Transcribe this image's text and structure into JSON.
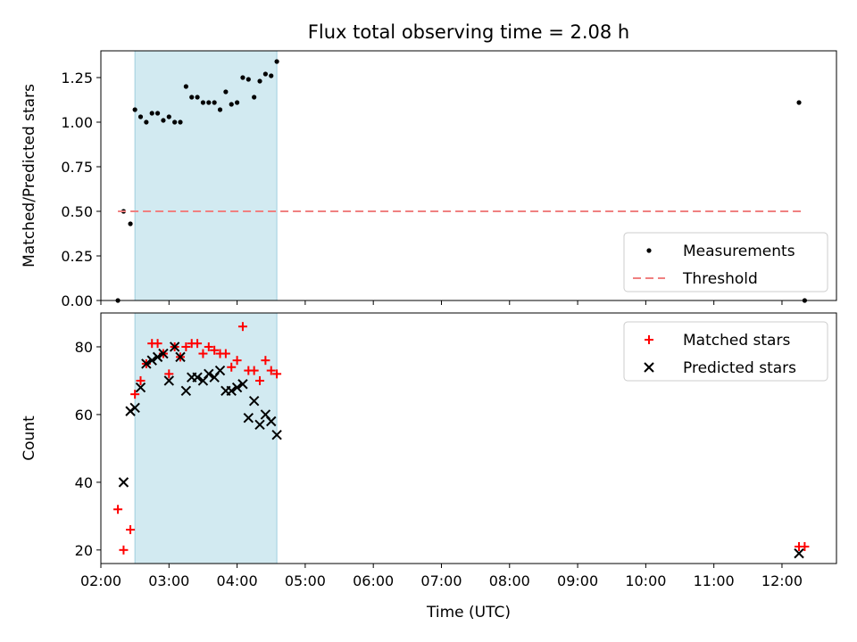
{
  "chart_data": [
    {
      "type": "scatter",
      "title": "Flux total observing time = 2.08 h",
      "ylabel": "Matched/Predicted stars",
      "xlabel": "",
      "xlim": [
        "02:00",
        "12:48"
      ],
      "ylim": [
        0,
        1.4
      ],
      "yticks": [
        "0.00",
        "0.25",
        "0.50",
        "0.75",
        "1.00",
        "1.25"
      ],
      "shaded_region": {
        "x_start": "02:30",
        "x_end": "04:35",
        "color": "#add8e6"
      },
      "legend": {
        "placement": "lower-right",
        "entries": [
          "Measurements",
          "Threshold"
        ]
      },
      "series": [
        {
          "name": "Measurements",
          "marker": "dot",
          "color": "#000000",
          "points": [
            [
              "02:15",
              0.0
            ],
            [
              "02:20",
              0.5
            ],
            [
              "02:26",
              0.43
            ],
            [
              "02:30",
              1.07
            ],
            [
              "02:35",
              1.03
            ],
            [
              "02:40",
              1.0
            ],
            [
              "02:45",
              1.05
            ],
            [
              "02:50",
              1.05
            ],
            [
              "02:55",
              1.01
            ],
            [
              "03:00",
              1.03
            ],
            [
              "03:05",
              1.0
            ],
            [
              "03:10",
              1.0
            ],
            [
              "03:15",
              1.2
            ],
            [
              "03:20",
              1.14
            ],
            [
              "03:25",
              1.14
            ],
            [
              "03:30",
              1.11
            ],
            [
              "03:35",
              1.11
            ],
            [
              "03:40",
              1.11
            ],
            [
              "03:45",
              1.07
            ],
            [
              "03:50",
              1.17
            ],
            [
              "03:55",
              1.1
            ],
            [
              "04:00",
              1.11
            ],
            [
              "04:05",
              1.25
            ],
            [
              "04:10",
              1.24
            ],
            [
              "04:15",
              1.14
            ],
            [
              "04:20",
              1.23
            ],
            [
              "04:25",
              1.27
            ],
            [
              "04:30",
              1.26
            ],
            [
              "04:35",
              1.34
            ],
            [
              "12:15",
              1.11
            ],
            [
              "12:20",
              0.0
            ]
          ]
        },
        {
          "name": "Threshold",
          "style": "dashed",
          "color": "#f08080",
          "points": [
            [
              "02:15",
              0.5
            ],
            [
              "12:20",
              0.5
            ]
          ]
        }
      ]
    },
    {
      "type": "scatter",
      "title": "",
      "ylabel": "Count",
      "xlabel": "Time (UTC)",
      "xlim": [
        "02:00",
        "12:48"
      ],
      "ylim": [
        16,
        90
      ],
      "yticks": [
        "20",
        "40",
        "60",
        "80"
      ],
      "xticks": [
        "02:00",
        "03:00",
        "04:00",
        "05:00",
        "06:00",
        "07:00",
        "08:00",
        "09:00",
        "10:00",
        "11:00",
        "12:00"
      ],
      "shaded_region": {
        "x_start": "02:30",
        "x_end": "04:35",
        "color": "#add8e6"
      },
      "legend": {
        "placement": "upper-right",
        "entries": [
          "Matched stars",
          "Predicted stars"
        ]
      },
      "series": [
        {
          "name": "Matched stars",
          "marker": "plus",
          "color": "#ff0000",
          "points": [
            [
              "02:15",
              32
            ],
            [
              "02:20",
              20
            ],
            [
              "02:26",
              26
            ],
            [
              "02:30",
              66
            ],
            [
              "02:35",
              70
            ],
            [
              "02:40",
              75
            ],
            [
              "02:45",
              81
            ],
            [
              "02:50",
              81
            ],
            [
              "02:55",
              78
            ],
            [
              "03:00",
              72
            ],
            [
              "03:05",
              80
            ],
            [
              "03:10",
              77
            ],
            [
              "03:15",
              80
            ],
            [
              "03:20",
              81
            ],
            [
              "03:25",
              81
            ],
            [
              "03:30",
              78
            ],
            [
              "03:35",
              80
            ],
            [
              "03:40",
              79
            ],
            [
              "03:45",
              78
            ],
            [
              "03:50",
              78
            ],
            [
              "03:55",
              74
            ],
            [
              "04:00",
              76
            ],
            [
              "04:05",
              86
            ],
            [
              "04:10",
              73
            ],
            [
              "04:15",
              73
            ],
            [
              "04:20",
              70
            ],
            [
              "04:25",
              76
            ],
            [
              "04:30",
              73
            ],
            [
              "04:35",
              72
            ],
            [
              "12:15",
              21
            ],
            [
              "12:20",
              21
            ]
          ]
        },
        {
          "name": "Predicted stars",
          "marker": "x",
          "color": "#000000",
          "points": [
            [
              "02:20",
              40
            ],
            [
              "02:26",
              61
            ],
            [
              "02:30",
              62
            ],
            [
              "02:35",
              68
            ],
            [
              "02:40",
              75
            ],
            [
              "02:45",
              76
            ],
            [
              "02:50",
              77
            ],
            [
              "02:55",
              78
            ],
            [
              "03:00",
              70
            ],
            [
              "03:05",
              80
            ],
            [
              "03:10",
              77
            ],
            [
              "03:15",
              67
            ],
            [
              "03:20",
              71
            ],
            [
              "03:25",
              71
            ],
            [
              "03:30",
              70
            ],
            [
              "03:35",
              72
            ],
            [
              "03:40",
              71
            ],
            [
              "03:45",
              73
            ],
            [
              "03:50",
              67
            ],
            [
              "03:55",
              67
            ],
            [
              "04:00",
              68
            ],
            [
              "04:05",
              69
            ],
            [
              "04:10",
              59
            ],
            [
              "04:15",
              64
            ],
            [
              "04:20",
              57
            ],
            [
              "04:25",
              60
            ],
            [
              "04:30",
              58
            ],
            [
              "04:35",
              54
            ],
            [
              "12:15",
              19
            ]
          ]
        }
      ]
    }
  ]
}
